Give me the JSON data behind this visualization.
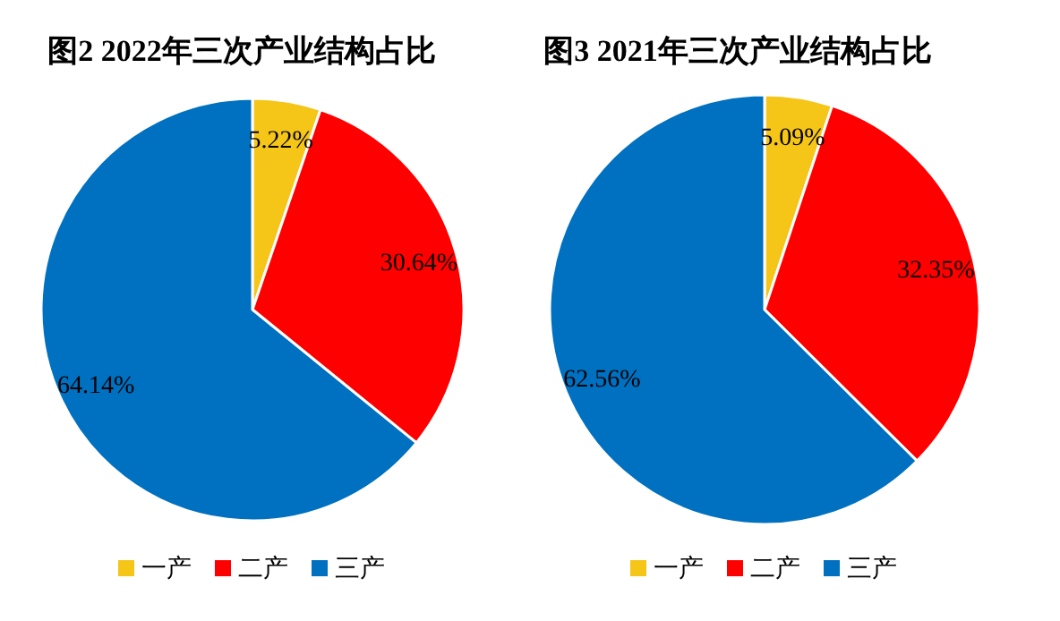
{
  "chart_data": [
    {
      "type": "pie",
      "title": "图2  2022年三次产业结构占比",
      "categories": [
        "一产",
        "二产",
        "三产"
      ],
      "values": [
        5.22,
        30.64,
        64.14
      ],
      "colors": [
        "#f5c518",
        "#ff0000",
        "#0070c0"
      ],
      "value_labels": [
        "5.22%",
        "30.64%",
        "64.14%"
      ],
      "legend": "bottom"
    },
    {
      "type": "pie",
      "title": "图3  2021年三次产业结构占比",
      "categories": [
        "一产",
        "二产",
        "三产"
      ],
      "values": [
        5.09,
        32.35,
        62.56
      ],
      "colors": [
        "#f5c518",
        "#ff0000",
        "#0070c0"
      ],
      "value_labels": [
        "5.09%",
        "32.35%",
        "62.56%"
      ],
      "legend": "bottom"
    }
  ]
}
